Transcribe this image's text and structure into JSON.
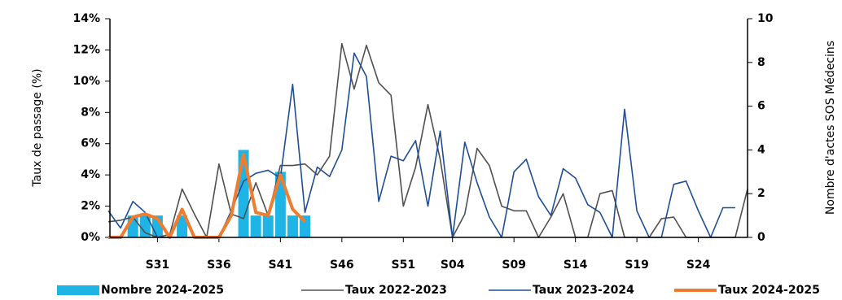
{
  "chart_data": {
    "type": "combo",
    "ylabel": "Taux de passage (%)",
    "y2label": "Nombre d'actes SOS Médecins",
    "categories": [
      null,
      null,
      null,
      null,
      "S31",
      null,
      null,
      null,
      null,
      "S36",
      null,
      null,
      null,
      null,
      "S41",
      null,
      null,
      null,
      null,
      "S46",
      null,
      null,
      null,
      null,
      "S51",
      null,
      null,
      null,
      "S04",
      null,
      null,
      null,
      null,
      "S09",
      null,
      null,
      null,
      null,
      "S14",
      null,
      null,
      null,
      null,
      "S19",
      null,
      null,
      null,
      null,
      "S24",
      null,
      null,
      null,
      null
    ],
    "ylim": [
      0,
      14
    ],
    "yticks": [
      {
        "value": 0,
        "label": "0%"
      },
      {
        "value": 2,
        "label": "2%"
      },
      {
        "value": 4,
        "label": "4%"
      },
      {
        "value": 6,
        "label": "6%"
      },
      {
        "value": 8,
        "label": "8%"
      },
      {
        "value": 10,
        "label": "10%"
      },
      {
        "value": 12,
        "label": "12%"
      },
      {
        "value": 14,
        "label": "14%"
      }
    ],
    "y2lim": [
      0,
      10
    ],
    "y2ticks": [
      0,
      2,
      4,
      6,
      8,
      10
    ],
    "series": [
      {
        "name": "Nombre 2024-2025",
        "type": "bar",
        "axis": "y2",
        "color": "#1fb4e6",
        "values": [
          0,
          0,
          1,
          1,
          1,
          0,
          1,
          0,
          0,
          0,
          0,
          4,
          1,
          1,
          3,
          1,
          1,
          null,
          null,
          null,
          null,
          null,
          null,
          null,
          null,
          null,
          null,
          null,
          null,
          null,
          null,
          null,
          null,
          null,
          null,
          null,
          null,
          null,
          null,
          null,
          null,
          null,
          null,
          null,
          null,
          null,
          null,
          null,
          null,
          null,
          null,
          null,
          null
        ]
      },
      {
        "name": "Taux 2022-2023",
        "type": "line",
        "color": "#505050",
        "values": [
          1.0,
          1.1,
          1.3,
          0.3,
          0,
          0.2,
          3.1,
          1.5,
          0,
          4.7,
          1.5,
          1.2,
          3.5,
          1.4,
          4.6,
          4.6,
          4.7,
          4.0,
          5.2,
          12.4,
          9.5,
          12.3,
          9.9,
          9.1,
          2.0,
          4.5,
          8.5,
          5.0,
          0,
          1.5,
          5.7,
          4.6,
          2.0,
          1.7,
          1.7,
          0,
          1.3,
          2.8,
          0,
          0,
          2.8,
          3.0,
          0,
          0,
          0,
          1.2,
          1.3,
          0,
          0,
          0,
          0,
          0,
          3.1
        ]
      },
      {
        "name": "Taux 2023-2024",
        "type": "line",
        "color": "#1f4e96",
        "values": [
          1.7,
          0.6,
          2.3,
          1.6,
          0,
          0,
          0,
          0,
          0,
          0,
          1.7,
          3.6,
          4.1,
          4.3,
          3.8,
          9.8,
          1.6,
          4.5,
          3.9,
          5.6,
          11.8,
          10.3,
          2.3,
          5.2,
          4.9,
          6.2,
          2.0,
          6.8,
          0,
          6.1,
          3.5,
          1.3,
          0,
          4.2,
          5.0,
          2.6,
          1.4,
          4.4,
          3.8,
          2.1,
          1.6,
          0,
          8.2,
          1.7,
          0,
          0,
          3.4,
          3.6,
          1.7,
          0,
          1.9,
          1.9,
          null
        ]
      },
      {
        "name": "Taux 2024-2025",
        "type": "line",
        "width": 4,
        "color": "#ed7d31",
        "values": [
          0,
          0,
          1.3,
          1.5,
          1.2,
          0,
          1.8,
          0,
          0,
          0,
          1.4,
          5.3,
          1.6,
          1.4,
          4.0,
          1.8,
          1.0,
          null,
          null,
          null,
          null,
          null,
          null,
          null,
          null,
          null,
          null,
          null,
          null,
          null,
          null,
          null,
          null,
          null,
          null,
          null,
          null,
          null,
          null,
          null,
          null,
          null,
          null,
          null,
          null,
          null,
          null,
          null,
          null,
          null,
          null,
          null,
          null
        ]
      }
    ]
  }
}
